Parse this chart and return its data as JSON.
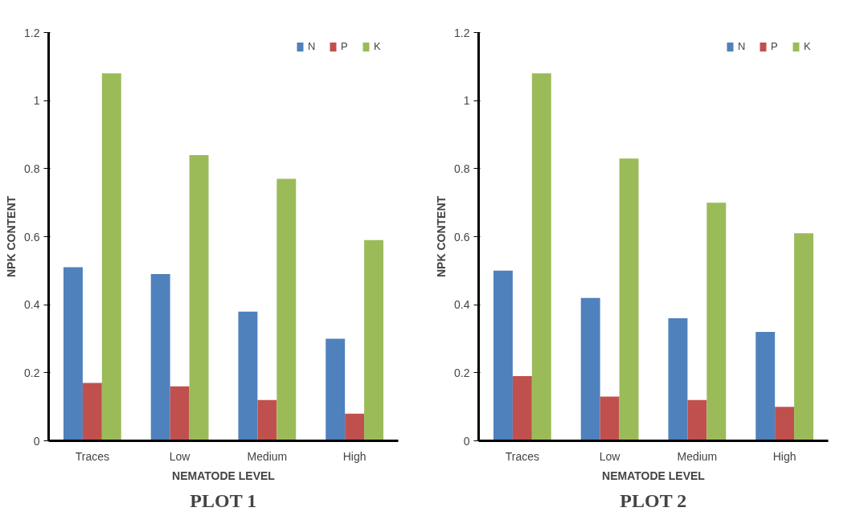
{
  "chart_data": [
    {
      "type": "bar",
      "title": "PLOT 1",
      "xlabel": "NEMATODE LEVEL",
      "ylabel": "NPK CONTENT",
      "categories": [
        "Traces",
        "Low",
        "Medium",
        "High"
      ],
      "series": [
        {
          "name": "N",
          "color": "#4f81bd",
          "values": [
            0.51,
            0.49,
            0.38,
            0.3
          ]
        },
        {
          "name": "P",
          "color": "#c0504d",
          "values": [
            0.17,
            0.16,
            0.12,
            0.08
          ]
        },
        {
          "name": "K",
          "color": "#9bbb59",
          "values": [
            1.08,
            0.84,
            0.77,
            0.59
          ]
        }
      ],
      "ylim": [
        0,
        1.2
      ],
      "yticks": [
        0,
        0.2,
        0.4,
        0.6,
        0.8,
        1,
        1.2
      ],
      "grid": false,
      "legend": "top right"
    },
    {
      "type": "bar",
      "title": "PLOT 2",
      "xlabel": "NEMATODE LEVEL",
      "ylabel": "NPK CONTENT",
      "categories": [
        "Traces",
        "Low",
        "Medium",
        "High"
      ],
      "series": [
        {
          "name": "N",
          "color": "#4f81bd",
          "values": [
            0.5,
            0.42,
            0.36,
            0.32
          ]
        },
        {
          "name": "P",
          "color": "#c0504d",
          "values": [
            0.19,
            0.13,
            0.12,
            0.1
          ]
        },
        {
          "name": "K",
          "color": "#9bbb59",
          "values": [
            1.08,
            0.83,
            0.7,
            0.61
          ]
        }
      ],
      "ylim": [
        0,
        1.2
      ],
      "yticks": [
        0,
        0.2,
        0.4,
        0.6,
        0.8,
        1,
        1.2
      ],
      "grid": false,
      "legend": "top right"
    }
  ]
}
